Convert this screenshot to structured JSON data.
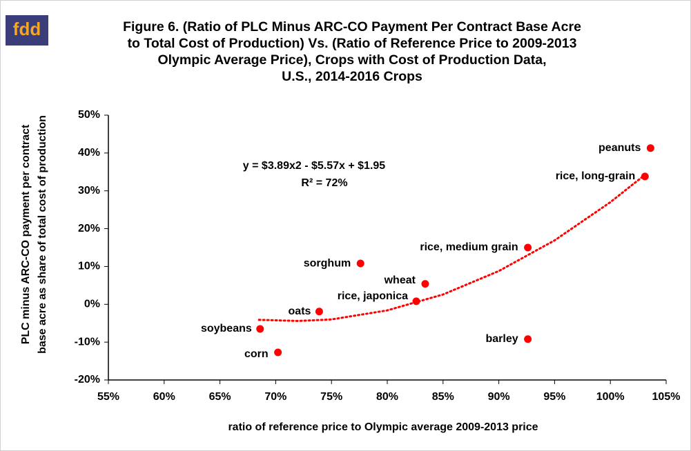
{
  "logo": "fdd",
  "chart_data": {
    "type": "scatter",
    "title": [
      "Figure 6. (Ratio of PLC Minus ARC-CO Payment Per Contract Base Acre",
      "to Total Cost of Production) Vs. (Ratio of Reference Price to 2009-2013",
      "Olympic Average Price), Crops with Cost of Production Data,",
      "U.S., 2014-2016 Crops"
    ],
    "x_label": "ratio of reference price to Olympic average 2009-2013 price",
    "y_label": [
      "PLC  minus ARC-CO payment per contract",
      "base acre as share of total cost of production"
    ],
    "annotations": [
      "y = $3.89x2 - $5.57x + $1.95",
      "R² = 72%"
    ],
    "labels": [
      "peanuts",
      "rice, long-grain",
      "rice, medium grain",
      "sorghum",
      "wheat",
      "rice, japonica",
      "oats",
      "soybeans",
      "corn",
      "barley"
    ],
    "x": [
      103.6,
      103.1,
      92.6,
      77.6,
      83.4,
      82.6,
      73.9,
      68.6,
      70.2,
      92.6
    ],
    "values": [
      41.3,
      33.8,
      15,
      10.8,
      5.4,
      0.8,
      -1.9,
      -6.5,
      -12.7,
      -9.2
    ],
    "color": "#ff0000",
    "trendline": {
      "x": [
        68.5,
        72,
        75,
        80,
        85,
        90,
        95,
        100,
        103
      ],
      "values": [
        -4.1,
        -4.4,
        -4.0,
        -1.6,
        2.6,
        8.8,
        16.9,
        27,
        34
      ],
      "color": "#ff0000"
    },
    "xlim": [
      55,
      105
    ],
    "xticks": [
      {
        "value": 55,
        "label": "55%"
      },
      {
        "value": 60,
        "label": "60%"
      },
      {
        "value": 65,
        "label": "65%"
      },
      {
        "value": 70,
        "label": "70%"
      },
      {
        "value": 75,
        "label": "75%"
      },
      {
        "value": 80,
        "label": "80%"
      },
      {
        "value": 85,
        "label": "85%"
      },
      {
        "value": 90,
        "label": "90%"
      },
      {
        "value": 95,
        "label": "95%"
      },
      {
        "value": 100,
        "label": "100%"
      },
      {
        "value": 105,
        "label": "105%"
      }
    ],
    "ylim": [
      -20,
      50
    ],
    "yticks": [
      {
        "value": -20,
        "label": "-20%"
      },
      {
        "value": -10,
        "label": "-10%"
      },
      {
        "value": 0,
        "label": "0%"
      },
      {
        "value": 10,
        "label": "10%"
      },
      {
        "value": 20,
        "label": "20%"
      },
      {
        "value": 30,
        "label": "30%"
      },
      {
        "value": 40,
        "label": "40%"
      },
      {
        "value": 50,
        "label": "50%"
      }
    ],
    "grid": false
  }
}
